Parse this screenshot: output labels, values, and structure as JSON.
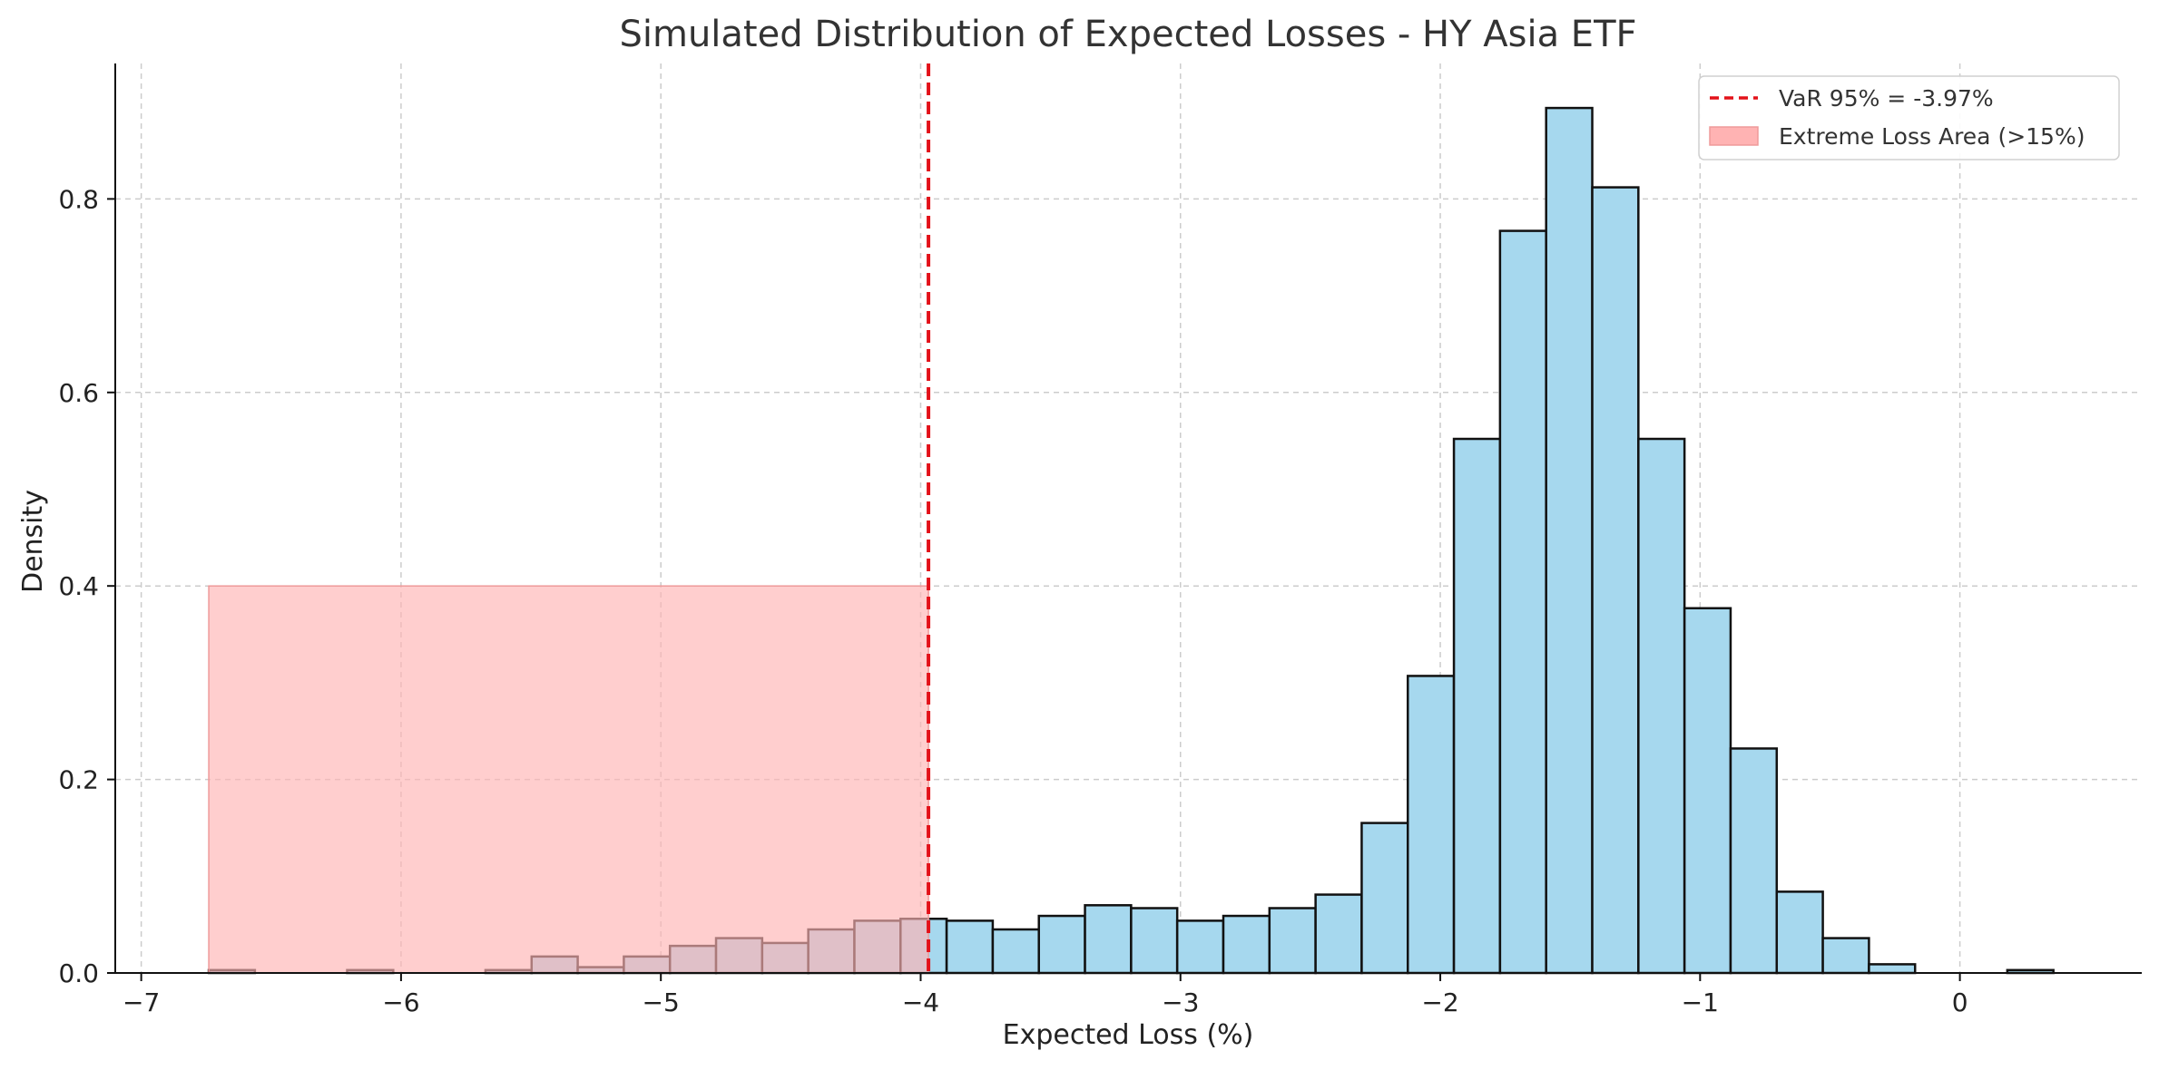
{
  "chart_data": {
    "type": "histogram",
    "title": "Simulated Distribution of Expected Losses - HY Asia ETF",
    "xlabel": "Expected Loss (%)",
    "ylabel": "Density",
    "xlim": [
      -7.1,
      0.7
    ],
    "ylim": [
      0,
      0.94
    ],
    "x_ticks": [
      {
        "value": -7,
        "label": "−7"
      },
      {
        "value": -6,
        "label": "−6"
      },
      {
        "value": -5,
        "label": "−5"
      },
      {
        "value": -4,
        "label": "−4"
      },
      {
        "value": -3,
        "label": "−3"
      },
      {
        "value": -2,
        "label": "−2"
      },
      {
        "value": -1,
        "label": "−1"
      },
      {
        "value": 0,
        "label": "0"
      }
    ],
    "y_ticks": [
      {
        "value": 0,
        "label": "0.0"
      },
      {
        "value": 0.2,
        "label": "0.2"
      },
      {
        "value": 0.4,
        "label": "0.4"
      },
      {
        "value": 0.6,
        "label": "0.6"
      },
      {
        "value": 0.8,
        "label": "0.8"
      }
    ],
    "grid": true,
    "bins": {
      "start": -6.74,
      "width": 0.1775,
      "densities": [
        0.003,
        0,
        0,
        0.003,
        0,
        0,
        0.003,
        0.017,
        0.006,
        0.017,
        0.028,
        0.036,
        0.031,
        0.045,
        0.054,
        0.056,
        0.054,
        0.045,
        0.059,
        0.07,
        0.067,
        0.054,
        0.059,
        0.067,
        0.081,
        0.155,
        0.307,
        0.552,
        0.767,
        0.894,
        0.812,
        0.552,
        0.377,
        0.232,
        0.084,
        0.036,
        0.009,
        0,
        0,
        0.003
      ],
      "fill": "#a6d8ee",
      "edge": "#111111"
    },
    "var_line": {
      "x": -3.97,
      "label": "VaR 95% = -3.97%",
      "color": "#e3121a"
    },
    "extreme_area": {
      "x_start": -6.74,
      "x_end": -3.97,
      "y": 0.4,
      "label": "Extreme Loss Area (>15%)",
      "color": "#ffb3b3"
    },
    "legend_position": "top-right"
  }
}
